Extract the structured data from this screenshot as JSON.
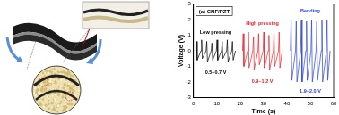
{
  "chart_data": {
    "type": "line",
    "title": "(a) CNF/PZT",
    "x_label": "Time (s)",
    "y_label": "Voltage (V)",
    "xlim": [
      0,
      60
    ],
    "xticks": [
      0,
      10,
      20,
      30,
      40,
      50,
      60
    ],
    "ylim": [
      -3,
      3
    ],
    "yticks": [
      -3,
      -2,
      -1,
      0,
      1,
      2,
      3
    ],
    "grid": false,
    "series": [
      {
        "name": "Low pressing",
        "color": "#000000",
        "x": [
          1,
          1.3,
          1.6,
          3.2,
          3.5,
          3.8,
          5.4,
          5.7,
          6.0,
          7.6,
          7.9,
          8.2,
          9.8,
          10.1,
          10.4,
          12,
          12.3,
          12.6,
          14.2,
          14.5,
          14.8,
          16.4,
          16.7,
          17.0,
          18.0
        ],
        "values": [
          0,
          0.6,
          -0.6,
          0,
          0.7,
          -0.5,
          0,
          0.6,
          -0.7,
          0,
          0.5,
          -0.6,
          0,
          0.7,
          -0.6,
          0,
          0.6,
          -0.5,
          0,
          0.7,
          -0.7,
          0,
          0.6,
          -0.6,
          0
        ]
      },
      {
        "name": "High pressing",
        "color": "#e8202a",
        "x": [
          21,
          21.3,
          21.6,
          23.2,
          23.5,
          23.8,
          25.4,
          25.7,
          26.0,
          27.6,
          27.9,
          28.2,
          29.8,
          30.1,
          30.4,
          32,
          32.3,
          32.6,
          34.2,
          34.5,
          34.8,
          36.4,
          36.7,
          37.0,
          38.0
        ],
        "values": [
          0,
          1.1,
          -1.0,
          0,
          1.2,
          -1.1,
          0,
          0.9,
          -1.2,
          0,
          1.1,
          -0.9,
          0,
          1.2,
          -1.1,
          0,
          1.0,
          -1.2,
          0,
          1.1,
          -1.0,
          0,
          1.2,
          -1.1,
          0
        ]
      },
      {
        "name": "Bending",
        "color": "#2a3fd6",
        "x": [
          41.5,
          41.8,
          42.1,
          43.7,
          44.0,
          44.3,
          45.9,
          46.2,
          46.5,
          48.1,
          48.4,
          48.7,
          50.3,
          50.6,
          50.9,
          52.5,
          52.8,
          53.1,
          54.7,
          55.0,
          55.3,
          56.9,
          57.2,
          57.5,
          58.5
        ],
        "values": [
          0,
          2.0,
          -1.9,
          0,
          1.9,
          -2.0,
          0,
          2.0,
          -2.0,
          0,
          1.9,
          -1.9,
          0,
          2.0,
          -2.0,
          0,
          1.9,
          -1.9,
          0,
          2.0,
          -2.0,
          0,
          2.0,
          -1.9,
          0
        ]
      }
    ],
    "annotations": [
      {
        "text": "Low pressing",
        "x": 9.5,
        "y": 1.2,
        "color": "#000000"
      },
      {
        "text": "0.5~0.7 V",
        "x": 9.5,
        "y": -1.4,
        "color": "#000000"
      },
      {
        "text": "High pressing",
        "x": 29.5,
        "y": 1.75,
        "color": "#e8202a"
      },
      {
        "text": "0.9~1.2 V",
        "x": 29.5,
        "y": -1.95,
        "color": "#e8202a"
      },
      {
        "text": "Bending",
        "x": 50,
        "y": 2.55,
        "color": "#2a3fd6"
      },
      {
        "text": "1.9~2.0 V",
        "x": 50,
        "y": -2.6,
        "color": "#2a3fd6"
      }
    ]
  }
}
